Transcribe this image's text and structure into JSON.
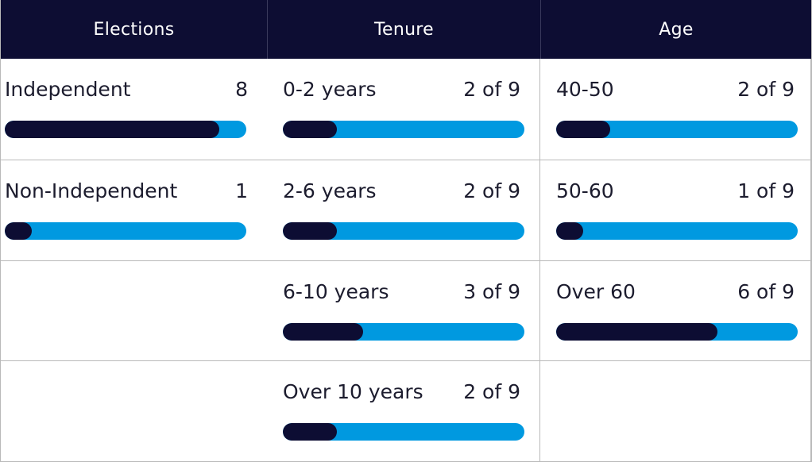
{
  "colors": {
    "header_bg": "#0d0d33",
    "bar_fill": "#0d0d33",
    "bar_track": "#0099e0",
    "header_text": "#ffffff"
  },
  "chart_data": {
    "type": "bar",
    "orientation": "horizontal",
    "groups": [
      {
        "name": "Elections",
        "total": 9,
        "rows": [
          {
            "label": "Independent",
            "value": 8,
            "display": "8"
          },
          {
            "label": "Non-Independent",
            "value": 1,
            "display": "1"
          }
        ]
      },
      {
        "name": "Tenure",
        "total": 9,
        "rows": [
          {
            "label": "0-2 years",
            "value": 2,
            "display": "2 of 9"
          },
          {
            "label": "2-6 years",
            "value": 2,
            "display": "2 of 9"
          },
          {
            "label": "6-10 years",
            "value": 3,
            "display": "3 of 9"
          },
          {
            "label": "Over 10 years",
            "value": 2,
            "display": "2 of 9"
          }
        ]
      },
      {
        "name": "Age",
        "total": 9,
        "rows": [
          {
            "label": "40-50",
            "value": 2,
            "display": "2 of 9"
          },
          {
            "label": "50-60",
            "value": 1,
            "display": "1 of 9"
          },
          {
            "label": "Over 60",
            "value": 6,
            "display": "6 of 9"
          }
        ]
      }
    ]
  }
}
